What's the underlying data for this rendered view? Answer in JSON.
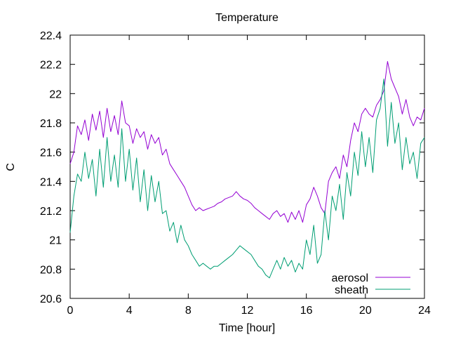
{
  "chart_data": {
    "type": "line",
    "title": "Temperature",
    "xlabel": "Time [hour]",
    "ylabel": "C",
    "xlim": [
      0,
      24
    ],
    "ylim": [
      20.6,
      22.4
    ],
    "xticks": [
      0,
      4,
      8,
      12,
      16,
      20,
      24
    ],
    "xtick_labels": [
      "0",
      "4",
      "8",
      "12",
      "16",
      "20",
      "24"
    ],
    "yticks": [
      20.6,
      20.8,
      21.0,
      21.2,
      21.4,
      21.6,
      21.8,
      22.0,
      22.2,
      22.4
    ],
    "ytick_labels": [
      "20.6",
      "20.8",
      "21",
      "21.2",
      "21.4",
      "21.6",
      "21.8",
      "22",
      "22.2",
      "22.4"
    ],
    "grid": false,
    "legend_position": "bottom-right",
    "series": [
      {
        "name": "aerosol",
        "color": "#9400d3",
        "x": [
          0,
          0.25,
          0.5,
          0.75,
          1,
          1.25,
          1.5,
          1.75,
          2,
          2.25,
          2.5,
          2.75,
          3,
          3.25,
          3.5,
          3.75,
          4,
          4.25,
          4.5,
          4.75,
          5,
          5.25,
          5.5,
          5.75,
          6,
          6.25,
          6.5,
          6.75,
          7,
          7.25,
          7.5,
          7.75,
          8,
          8.25,
          8.5,
          8.75,
          9,
          9.25,
          9.5,
          9.75,
          10,
          10.25,
          10.5,
          10.75,
          11,
          11.25,
          11.5,
          11.75,
          12,
          12.25,
          12.5,
          12.75,
          13,
          13.25,
          13.5,
          13.75,
          14,
          14.25,
          14.5,
          14.75,
          15,
          15.25,
          15.5,
          15.75,
          16,
          16.25,
          16.5,
          16.75,
          17,
          17.25,
          17.5,
          17.75,
          18,
          18.25,
          18.5,
          18.75,
          19,
          19.25,
          19.5,
          19.75,
          20,
          20.25,
          20.5,
          20.75,
          21,
          21.25,
          21.5,
          21.75,
          22,
          22.25,
          22.5,
          22.75,
          23,
          23.25,
          23.5,
          23.75,
          24
        ],
        "y": [
          21.52,
          21.6,
          21.78,
          21.72,
          21.82,
          21.68,
          21.86,
          21.75,
          21.88,
          21.7,
          21.9,
          21.74,
          21.85,
          21.72,
          21.95,
          21.8,
          21.78,
          21.66,
          21.76,
          21.7,
          21.74,
          21.62,
          21.72,
          21.66,
          21.7,
          21.58,
          21.62,
          21.52,
          21.48,
          21.44,
          21.4,
          21.36,
          21.3,
          21.24,
          21.2,
          21.22,
          21.2,
          21.21,
          21.22,
          21.23,
          21.25,
          21.26,
          21.28,
          21.29,
          21.3,
          21.33,
          21.3,
          21.28,
          21.27,
          21.25,
          21.22,
          21.2,
          21.18,
          21.16,
          21.14,
          21.18,
          21.2,
          21.16,
          21.18,
          21.12,
          21.19,
          21.14,
          21.2,
          21.12,
          21.24,
          21.28,
          21.36,
          21.3,
          21.22,
          21.18,
          21.4,
          21.46,
          21.5,
          21.42,
          21.58,
          21.5,
          21.68,
          21.8,
          21.74,
          21.86,
          21.9,
          21.86,
          21.84,
          21.92,
          21.96,
          22.02,
          22.22,
          22.1,
          22.04,
          21.98,
          21.86,
          21.96,
          21.84,
          21.78,
          21.84,
          21.82,
          21.9
        ]
      },
      {
        "name": "sheath",
        "color": "#009e73",
        "x": [
          0,
          0.25,
          0.5,
          0.75,
          1,
          1.25,
          1.5,
          1.75,
          2,
          2.25,
          2.5,
          2.75,
          3,
          3.25,
          3.5,
          3.75,
          4,
          4.25,
          4.5,
          4.75,
          5,
          5.25,
          5.5,
          5.75,
          6,
          6.25,
          6.5,
          6.75,
          7,
          7.25,
          7.5,
          7.75,
          8,
          8.25,
          8.5,
          8.75,
          9,
          9.25,
          9.5,
          9.75,
          10,
          10.25,
          10.5,
          10.75,
          11,
          11.25,
          11.5,
          11.75,
          12,
          12.25,
          12.5,
          12.75,
          13,
          13.25,
          13.5,
          13.75,
          14,
          14.25,
          14.5,
          14.75,
          15,
          15.25,
          15.5,
          15.75,
          16,
          16.25,
          16.5,
          16.75,
          17,
          17.25,
          17.5,
          17.75,
          18,
          18.25,
          18.5,
          18.75,
          19,
          19.25,
          19.5,
          19.75,
          20,
          20.25,
          20.5,
          20.75,
          21,
          21.25,
          21.5,
          21.75,
          22,
          22.25,
          22.5,
          22.75,
          23,
          23.25,
          23.5,
          23.75,
          24
        ],
        "y": [
          21.05,
          21.3,
          21.45,
          21.4,
          21.6,
          21.42,
          21.55,
          21.3,
          21.62,
          21.36,
          21.7,
          21.4,
          21.58,
          21.36,
          21.76,
          21.4,
          21.62,
          21.34,
          21.56,
          21.26,
          21.48,
          21.2,
          21.44,
          21.26,
          21.4,
          21.18,
          21.2,
          21.06,
          21.12,
          20.98,
          21.1,
          21.0,
          20.96,
          20.9,
          20.86,
          20.82,
          20.84,
          20.82,
          20.8,
          20.82,
          20.82,
          20.84,
          20.86,
          20.88,
          20.9,
          20.93,
          20.96,
          20.94,
          20.92,
          20.9,
          20.86,
          20.82,
          20.8,
          20.76,
          20.74,
          20.8,
          20.86,
          20.8,
          20.88,
          20.82,
          20.86,
          20.78,
          20.84,
          20.8,
          21.0,
          20.9,
          21.1,
          20.84,
          20.9,
          21.2,
          21.0,
          21.3,
          21.2,
          21.38,
          21.14,
          21.46,
          21.3,
          21.6,
          21.44,
          21.74,
          21.5,
          21.7,
          21.46,
          21.82,
          21.9,
          22.1,
          21.64,
          21.94,
          21.66,
          21.8,
          21.48,
          21.7,
          21.52,
          21.6,
          21.42,
          21.66,
          21.7
        ]
      }
    ]
  }
}
